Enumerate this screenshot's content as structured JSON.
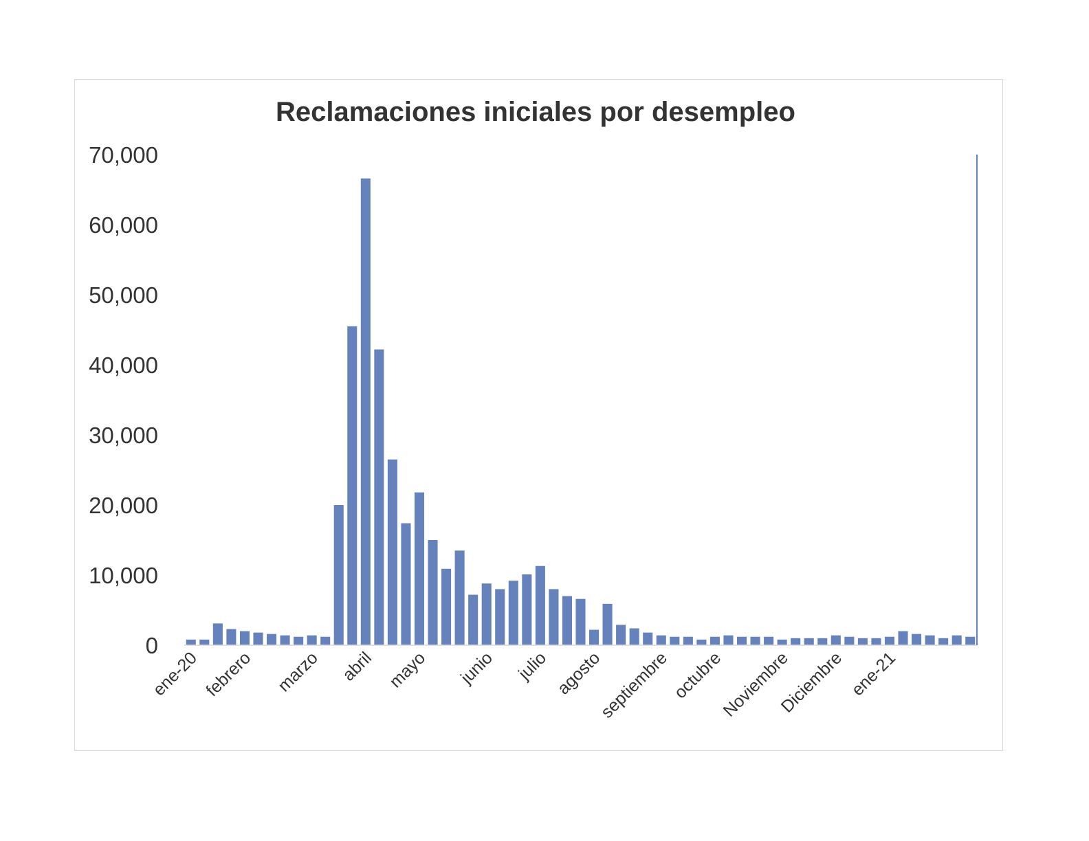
{
  "chart_data": {
    "type": "bar",
    "title": "Reclamaciones iniciales por desempleo",
    "xlabel": "",
    "ylabel": "",
    "ylim": [
      0,
      70000
    ],
    "yticks": [
      0,
      10000,
      20000,
      30000,
      40000,
      50000,
      60000,
      70000
    ],
    "ytick_labels": [
      "0",
      "10,000",
      "20,000",
      "30,000",
      "40,000",
      "50,000",
      "60,000",
      "70,000"
    ],
    "x_tick_labels": [
      {
        "index": 0,
        "label": "ene-20"
      },
      {
        "index": 4,
        "label": "febrero"
      },
      {
        "index": 9,
        "label": "marzo"
      },
      {
        "index": 13,
        "label": "abril"
      },
      {
        "index": 17,
        "label": "mayo"
      },
      {
        "index": 22,
        "label": "junio"
      },
      {
        "index": 26,
        "label": "julio"
      },
      {
        "index": 30,
        "label": "agosto"
      },
      {
        "index": 35,
        "label": "septiembre"
      },
      {
        "index": 39,
        "label": "octubre"
      },
      {
        "index": 44,
        "label": "Noviembre"
      },
      {
        "index": 48,
        "label": "Diciembre"
      },
      {
        "index": 52,
        "label": "ene-21"
      }
    ],
    "values": [
      800,
      800,
      3100,
      2300,
      2000,
      1800,
      1600,
      1400,
      1200,
      1400,
      1200,
      20000,
      45500,
      66600,
      42200,
      26500,
      17400,
      21800,
      15000,
      10900,
      13500,
      7200,
      8800,
      8000,
      9200,
      10100,
      11300,
      8000,
      7000,
      6600,
      2200,
      5900,
      2900,
      2400,
      1800,
      1400,
      1200,
      1200,
      800,
      1200,
      1400,
      1200,
      1200,
      1200,
      800,
      1000,
      1000,
      1000,
      1400,
      1200,
      1000,
      1000,
      1200,
      2000,
      1600,
      1400,
      1000,
      1400,
      1200
    ],
    "grid": false,
    "legend": "none",
    "colors": {
      "bar": "#6582bd",
      "axis": "#d9d9d9",
      "right_axis": "#6582bd",
      "text": "#333333"
    }
  }
}
